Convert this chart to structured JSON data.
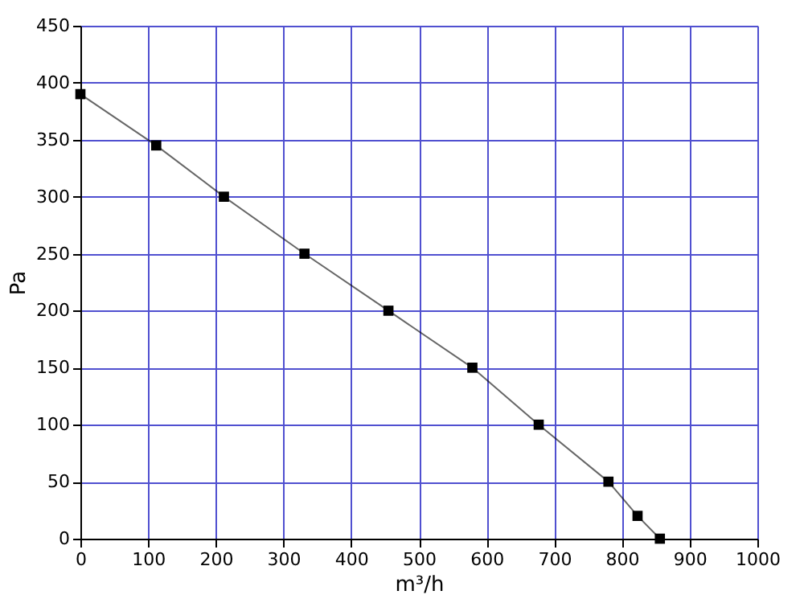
{
  "chart_data": {
    "type": "line",
    "xlabel": "m³/h",
    "ylabel": "Pa",
    "x": [
      0,
      112,
      212,
      331,
      455,
      579,
      677,
      780,
      823,
      856
    ],
    "series": [
      {
        "color": "#000000",
        "values": [
          390,
          345,
          300,
          250,
          200,
          150,
          100,
          50,
          20,
          0
        ]
      }
    ],
    "xlim": [
      0,
      1000
    ],
    "xticks": [
      0,
      100,
      200,
      300,
      400,
      500,
      600,
      700,
      800,
      900,
      1000
    ],
    "ylim": [
      0,
      450
    ],
    "yticks": [
      0,
      50,
      100,
      150,
      200,
      250,
      300,
      350,
      400,
      450
    ],
    "grid": true,
    "marker": "square",
    "line_style": "solid"
  }
}
